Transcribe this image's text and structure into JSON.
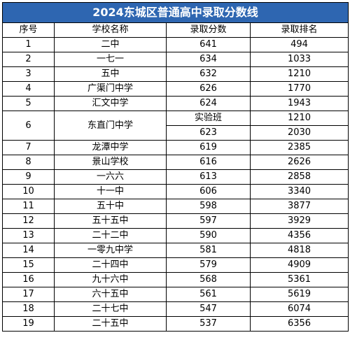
{
  "title": "2024东城区普通高中录取分数线",
  "headers": [
    "序号",
    "学校名称",
    "录取分数",
    "录取排名"
  ],
  "rows": [
    {
      "no": "1",
      "school": "二中",
      "score": "641",
      "rank": "494"
    },
    {
      "no": "2",
      "school": "一七一",
      "score": "634",
      "rank": "1033"
    },
    {
      "no": "3",
      "school": "五中",
      "score": "632",
      "rank": "1210"
    },
    {
      "no": "4",
      "school": "广渠门中学",
      "score": "626",
      "rank": "1770"
    },
    {
      "no": "5",
      "school": "汇文中学",
      "score": "624",
      "rank": "1943"
    },
    {
      "no": "6",
      "school": "东直门中学",
      "sub": [
        {
          "score": "实验班",
          "rank": "1210"
        },
        {
          "score": "623",
          "rank": "2030"
        }
      ]
    },
    {
      "no": "7",
      "school": "龙潭中学",
      "score": "619",
      "rank": "2385"
    },
    {
      "no": "8",
      "school": "景山学校",
      "score": "616",
      "rank": "2626"
    },
    {
      "no": "9",
      "school": "一六六",
      "score": "613",
      "rank": "2858"
    },
    {
      "no": "10",
      "school": "十一中",
      "score": "606",
      "rank": "3340"
    },
    {
      "no": "11",
      "school": "五十中",
      "score": "598",
      "rank": "3877"
    },
    {
      "no": "12",
      "school": "五十五中",
      "score": "597",
      "rank": "3929"
    },
    {
      "no": "13",
      "school": "二十二中",
      "score": "590",
      "rank": "4356"
    },
    {
      "no": "14",
      "school": "一零九中学",
      "score": "581",
      "rank": "4818"
    },
    {
      "no": "15",
      "school": "二十四中",
      "score": "579",
      "rank": "4909"
    },
    {
      "no": "16",
      "school": "九十六中",
      "score": "568",
      "rank": "5361"
    },
    {
      "no": "17",
      "school": "六十五中",
      "score": "561",
      "rank": "5619"
    },
    {
      "no": "18",
      "school": "二十七中",
      "score": "547",
      "rank": "6074"
    },
    {
      "no": "19",
      "school": "二十五中",
      "score": "537",
      "rank": "6356"
    }
  ]
}
